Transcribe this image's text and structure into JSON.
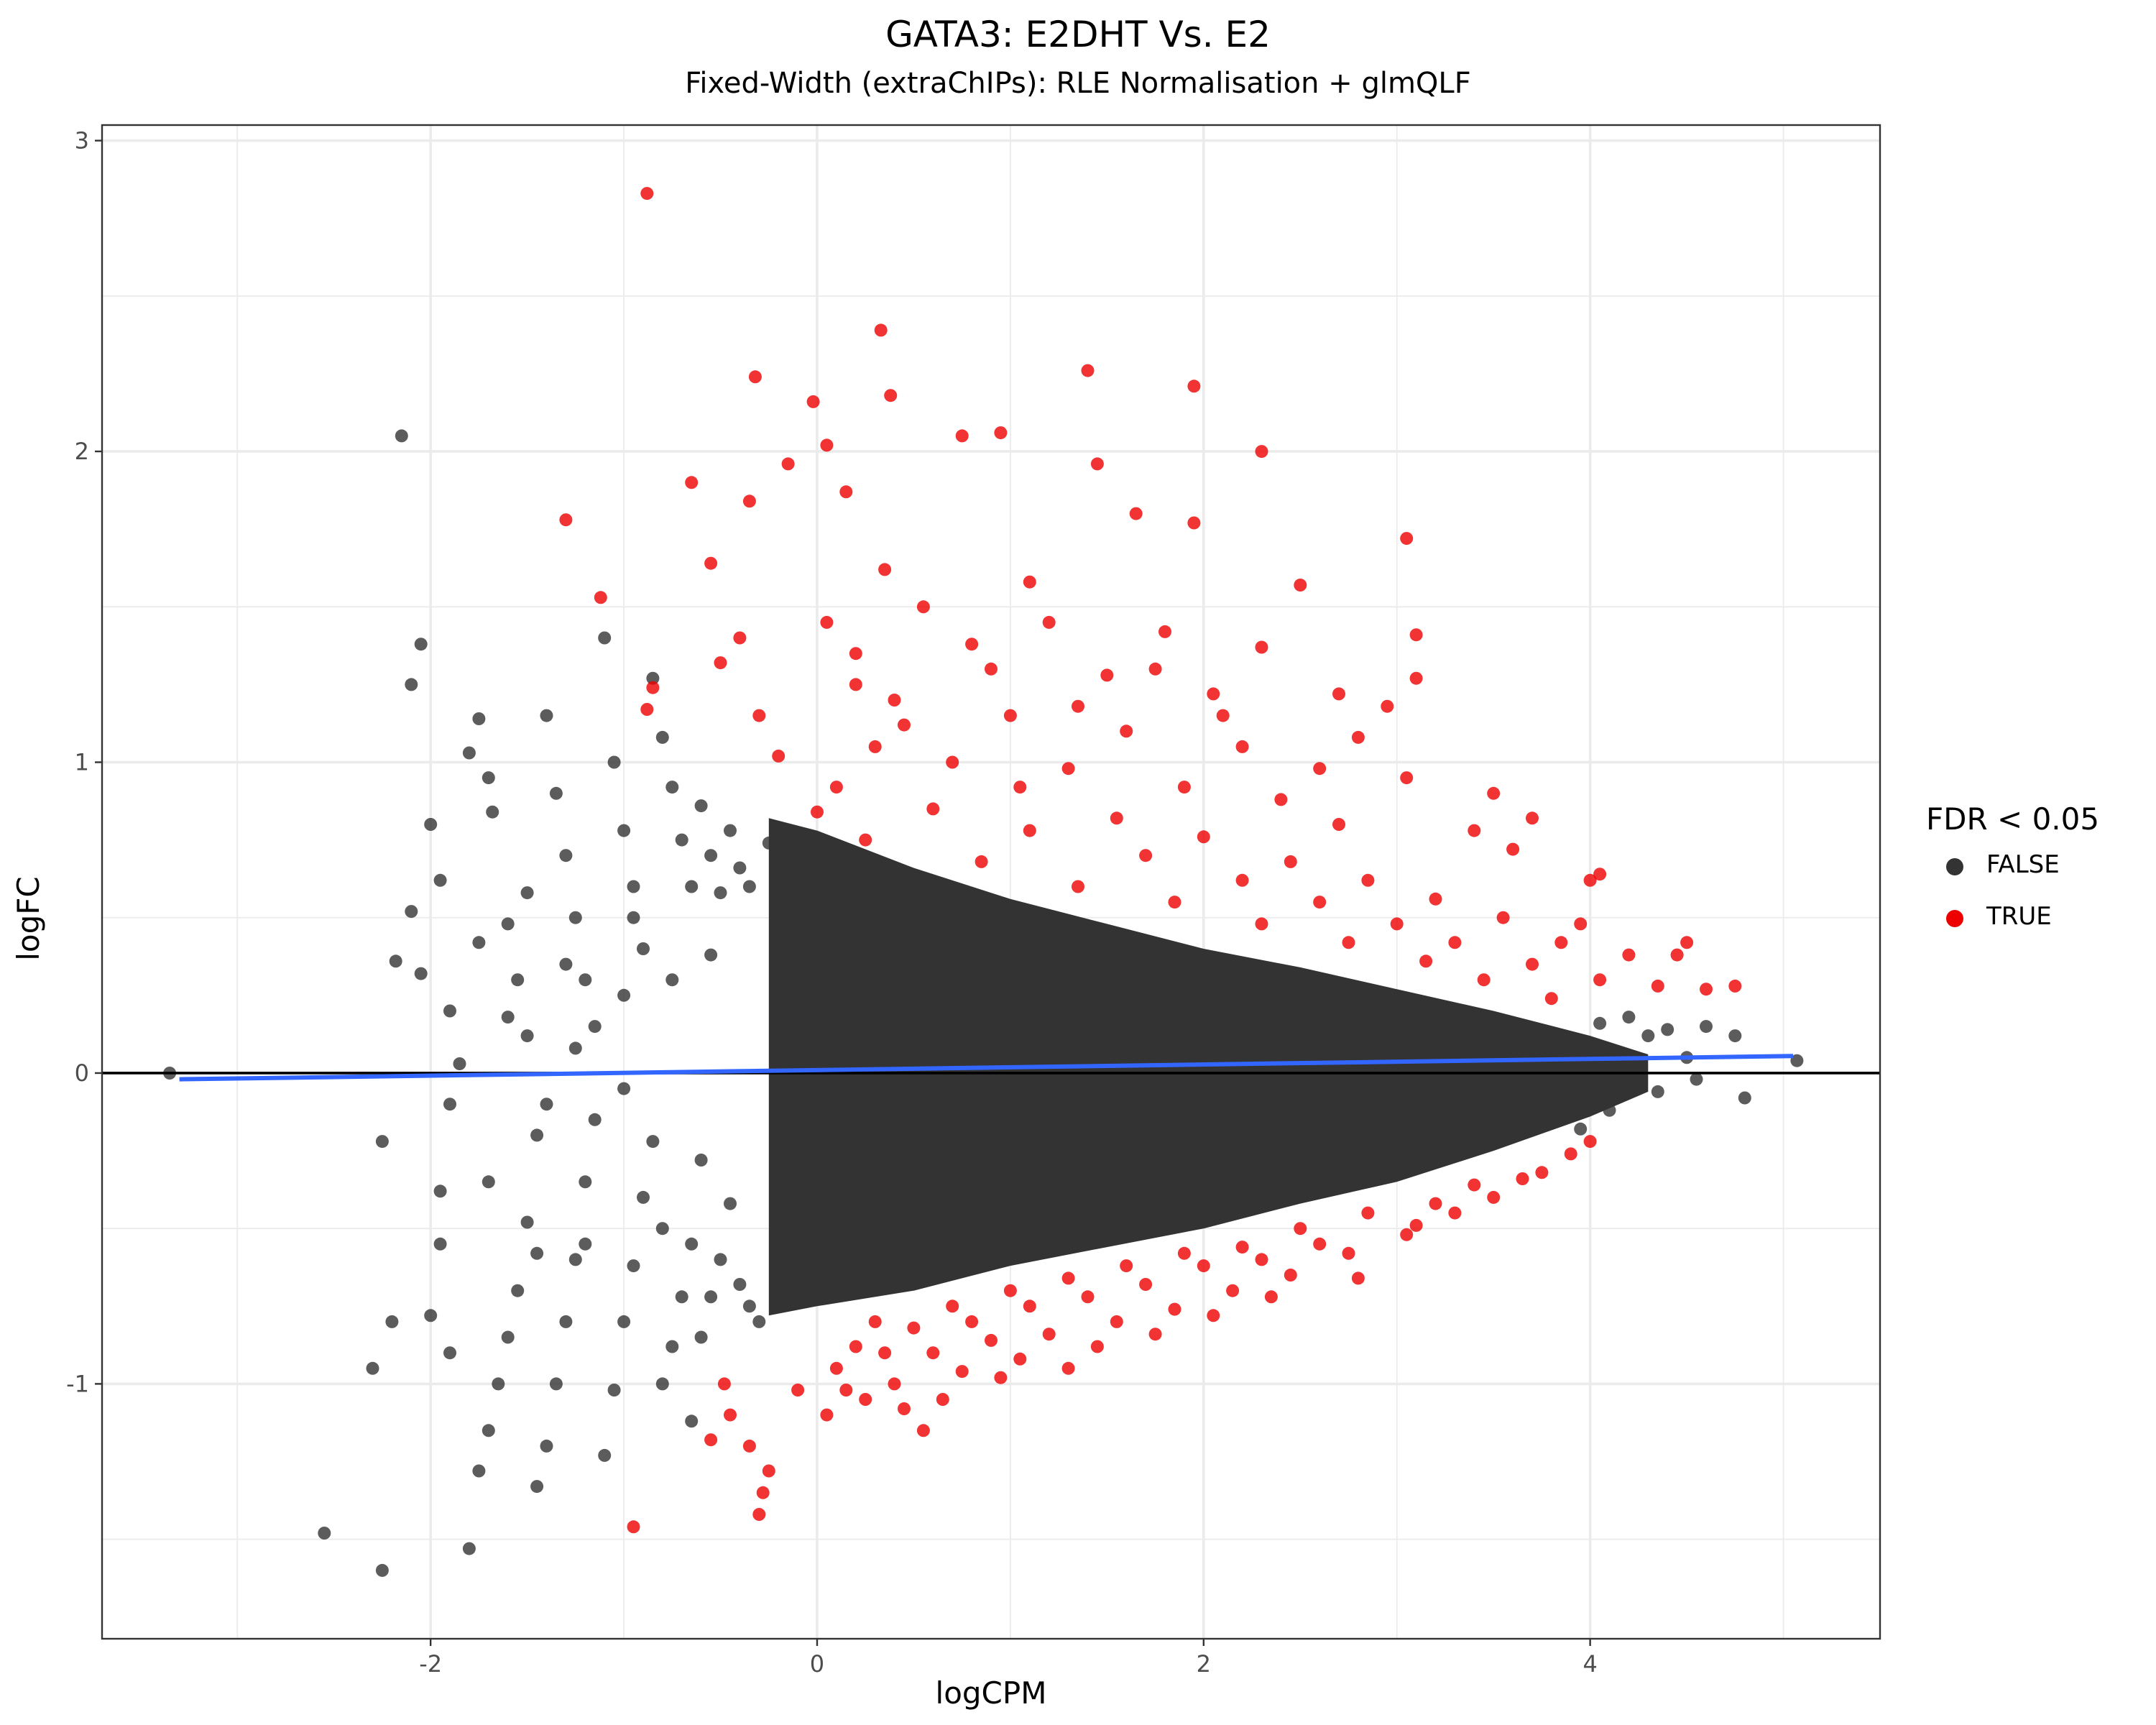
{
  "chart_data": {
    "type": "scatter",
    "title": "GATA3: E2DHT Vs. E2",
    "subtitle": "Fixed-Width (extraChIPs): RLE Normalisation + glmQLF",
    "xlabel": "logCPM",
    "ylabel": "logFC",
    "xlim": [
      -3.7,
      5.5
    ],
    "ylim": [
      -1.82,
      3.05
    ],
    "x_ticks": [
      -2,
      0,
      2,
      4
    ],
    "y_ticks": [
      -1,
      0,
      1,
      2,
      3
    ],
    "grid": true,
    "legend": {
      "title": "FDR < 0.05",
      "placement": "right",
      "entries": [
        {
          "label": "FALSE",
          "color": "#333333"
        },
        {
          "label": "TRUE",
          "color": "#ee0000"
        }
      ]
    },
    "reference_line": {
      "y": 0,
      "color": "#000000"
    },
    "trend_line": {
      "color": "#3366ff",
      "points": [
        [
          -3.3,
          -0.02
        ],
        [
          5.05,
          0.055
        ]
      ]
    },
    "dense_envelope": {
      "color": "#333333",
      "upper": [
        [
          -0.25,
          0.82
        ],
        [
          0.0,
          0.78
        ],
        [
          0.5,
          0.66
        ],
        [
          1.0,
          0.56
        ],
        [
          1.5,
          0.48
        ],
        [
          2.0,
          0.4
        ],
        [
          2.5,
          0.34
        ],
        [
          3.0,
          0.27
        ],
        [
          3.5,
          0.2
        ],
        [
          4.0,
          0.12
        ],
        [
          4.3,
          0.06
        ]
      ],
      "lower": [
        [
          4.3,
          -0.06
        ],
        [
          4.0,
          -0.14
        ],
        [
          3.5,
          -0.25
        ],
        [
          3.0,
          -0.35
        ],
        [
          2.5,
          -0.42
        ],
        [
          2.0,
          -0.5
        ],
        [
          1.5,
          -0.56
        ],
        [
          1.0,
          -0.62
        ],
        [
          0.5,
          -0.7
        ],
        [
          0.0,
          -0.75
        ],
        [
          -0.25,
          -0.78
        ]
      ]
    },
    "series": [
      {
        "name": "FALSE",
        "color": "#333333",
        "points": [
          [
            -3.35,
            0.0
          ],
          [
            -2.55,
            -1.48
          ],
          [
            -2.25,
            -1.6
          ],
          [
            -2.15,
            2.05
          ],
          [
            -2.1,
            1.25
          ],
          [
            -2.05,
            1.38
          ],
          [
            -2.2,
            -0.8
          ],
          [
            -2.3,
            -0.95
          ],
          [
            -2.25,
            -0.22
          ],
          [
            -2.1,
            0.52
          ],
          [
            -2.05,
            0.32
          ],
          [
            -2.18,
            0.36
          ],
          [
            -2.0,
            0.8
          ],
          [
            -1.95,
            0.62
          ],
          [
            -1.9,
            0.2
          ],
          [
            -1.85,
            0.03
          ],
          [
            -1.9,
            -0.1
          ],
          [
            -1.95,
            -0.55
          ],
          [
            -2.0,
            -0.78
          ],
          [
            -1.9,
            -0.9
          ],
          [
            -1.95,
            -0.38
          ],
          [
            -1.8,
            1.03
          ],
          [
            -1.75,
            1.14
          ],
          [
            -1.7,
            0.95
          ],
          [
            -1.68,
            0.84
          ],
          [
            -1.6,
            0.48
          ],
          [
            -1.55,
            0.3
          ],
          [
            -1.5,
            0.12
          ],
          [
            -1.45,
            -0.2
          ],
          [
            -1.5,
            -0.48
          ],
          [
            -1.55,
            -0.7
          ],
          [
            -1.6,
            -0.85
          ],
          [
            -1.65,
            -1.0
          ],
          [
            -1.7,
            -1.15
          ],
          [
            -1.75,
            -1.28
          ],
          [
            -1.8,
            -1.53
          ],
          [
            -1.4,
            1.15
          ],
          [
            -1.35,
            0.9
          ],
          [
            -1.3,
            0.7
          ],
          [
            -1.25,
            0.5
          ],
          [
            -1.2,
            0.3
          ],
          [
            -1.15,
            0.15
          ],
          [
            -1.15,
            -0.15
          ],
          [
            -1.2,
            -0.35
          ],
          [
            -1.25,
            -0.6
          ],
          [
            -1.3,
            -0.8
          ],
          [
            -1.35,
            -1.0
          ],
          [
            -1.4,
            -1.2
          ],
          [
            -1.45,
            -1.33
          ],
          [
            -1.1,
            1.4
          ],
          [
            -1.05,
            1.0
          ],
          [
            -1.0,
            0.78
          ],
          [
            -0.95,
            0.6
          ],
          [
            -0.9,
            0.4
          ],
          [
            -0.9,
            -0.4
          ],
          [
            -0.95,
            -0.62
          ],
          [
            -1.0,
            -0.8
          ],
          [
            -1.05,
            -1.02
          ],
          [
            -1.1,
            -1.23
          ],
          [
            -0.85,
            1.27
          ],
          [
            -0.8,
            1.08
          ],
          [
            -0.75,
            0.92
          ],
          [
            -0.7,
            0.75
          ],
          [
            -0.65,
            0.6
          ],
          [
            -0.65,
            -0.55
          ],
          [
            -0.7,
            -0.72
          ],
          [
            -0.75,
            -0.88
          ],
          [
            -0.8,
            -1.0
          ],
          [
            -0.6,
            0.86
          ],
          [
            -0.55,
            0.7
          ],
          [
            -0.5,
            0.58
          ],
          [
            -0.5,
            -0.6
          ],
          [
            -0.55,
            -0.72
          ],
          [
            -0.6,
            -0.85
          ],
          [
            -0.65,
            -1.12
          ],
          [
            -0.45,
            0.78
          ],
          [
            -0.4,
            0.66
          ],
          [
            -0.35,
            0.6
          ],
          [
            -0.4,
            -0.68
          ],
          [
            -0.35,
            -0.75
          ],
          [
            -0.3,
            -0.8
          ],
          [
            -0.25,
            0.74
          ],
          [
            -0.2,
            -0.7
          ],
          [
            -1.75,
            0.42
          ],
          [
            -1.7,
            -0.35
          ],
          [
            -1.5,
            0.58
          ],
          [
            -1.45,
            -0.58
          ],
          [
            -1.25,
            0.08
          ],
          [
            -1.0,
            -0.05
          ],
          [
            -1.0,
            0.25
          ],
          [
            -0.85,
            -0.22
          ],
          [
            -0.75,
            0.3
          ],
          [
            -0.6,
            -0.28
          ],
          [
            -0.55,
            0.38
          ],
          [
            -0.45,
            -0.42
          ],
          [
            -1.6,
            0.18
          ],
          [
            -1.4,
            -0.1
          ],
          [
            -1.3,
            0.35
          ],
          [
            -1.2,
            -0.55
          ],
          [
            -0.95,
            0.5
          ],
          [
            -0.8,
            -0.5
          ],
          [
            4.2,
            0.18
          ],
          [
            4.3,
            0.12
          ],
          [
            4.35,
            -0.06
          ],
          [
            4.4,
            0.14
          ],
          [
            4.5,
            0.05
          ],
          [
            4.55,
            -0.02
          ],
          [
            4.6,
            0.15
          ],
          [
            4.75,
            0.12
          ],
          [
            4.8,
            -0.08
          ],
          [
            5.07,
            0.04
          ],
          [
            4.1,
            -0.12
          ],
          [
            4.05,
            0.16
          ],
          [
            3.95,
            -0.18
          ],
          [
            4.15,
            -0.05
          ],
          [
            4.25,
            0.02
          ],
          [
            4.0,
            0.08
          ]
        ]
      },
      {
        "name": "TRUE",
        "color": "#ee0000",
        "points": [
          [
            -0.88,
            2.83
          ],
          [
            0.33,
            2.39
          ],
          [
            -0.32,
            2.24
          ],
          [
            0.38,
            2.18
          ],
          [
            -0.02,
            2.16
          ],
          [
            1.4,
            2.26
          ],
          [
            1.95,
            2.21
          ],
          [
            0.05,
            2.02
          ],
          [
            2.3,
            2.0
          ],
          [
            0.95,
            2.06
          ],
          [
            0.75,
            2.05
          ],
          [
            -0.15,
            1.96
          ],
          [
            1.45,
            1.96
          ],
          [
            -1.3,
            1.78
          ],
          [
            -0.65,
            1.9
          ],
          [
            -0.35,
            1.84
          ],
          [
            0.15,
            1.87
          ],
          [
            1.65,
            1.8
          ],
          [
            1.95,
            1.77
          ],
          [
            3.05,
            1.72
          ],
          [
            -1.12,
            1.53
          ],
          [
            -0.55,
            1.64
          ],
          [
            0.35,
            1.62
          ],
          [
            1.1,
            1.58
          ],
          [
            2.5,
            1.57
          ],
          [
            -0.4,
            1.4
          ],
          [
            0.05,
            1.45
          ],
          [
            0.55,
            1.5
          ],
          [
            1.2,
            1.45
          ],
          [
            1.8,
            1.42
          ],
          [
            3.1,
            1.41
          ],
          [
            2.3,
            1.37
          ],
          [
            2.7,
            1.22
          ],
          [
            3.1,
            1.27
          ],
          [
            -0.5,
            1.32
          ],
          [
            -0.85,
            1.24
          ],
          [
            -0.88,
            1.17
          ],
          [
            0.2,
            1.35
          ],
          [
            0.9,
            1.3
          ],
          [
            1.5,
            1.28
          ],
          [
            2.05,
            1.22
          ],
          [
            2.95,
            1.18
          ],
          [
            -0.3,
            1.15
          ],
          [
            0.4,
            1.2
          ],
          [
            1.0,
            1.15
          ],
          [
            1.6,
            1.1
          ],
          [
            2.2,
            1.05
          ],
          [
            2.8,
            1.08
          ],
          [
            3.05,
            0.95
          ],
          [
            -0.2,
            1.02
          ],
          [
            0.3,
            1.05
          ],
          [
            0.7,
            1.0
          ],
          [
            1.3,
            0.98
          ],
          [
            1.9,
            0.92
          ],
          [
            2.4,
            0.88
          ],
          [
            2.7,
            0.8
          ],
          [
            3.5,
            0.9
          ],
          [
            3.7,
            0.82
          ],
          [
            3.4,
            0.78
          ],
          [
            4.0,
            0.62
          ],
          [
            4.05,
            0.64
          ],
          [
            3.6,
            0.72
          ],
          [
            3.95,
            0.48
          ],
          [
            4.2,
            0.38
          ],
          [
            4.45,
            0.38
          ],
          [
            4.5,
            0.42
          ],
          [
            4.75,
            0.28
          ],
          [
            4.35,
            0.28
          ],
          [
            4.6,
            0.27
          ],
          [
            0.1,
            0.92
          ],
          [
            0.6,
            0.85
          ],
          [
            1.1,
            0.78
          ],
          [
            1.7,
            0.7
          ],
          [
            2.2,
            0.62
          ],
          [
            2.6,
            0.55
          ],
          [
            3.0,
            0.48
          ],
          [
            3.3,
            0.42
          ],
          [
            3.7,
            0.35
          ],
          [
            4.05,
            0.3
          ],
          [
            0.2,
            1.25
          ],
          [
            0.8,
            1.38
          ],
          [
            1.35,
            1.18
          ],
          [
            1.75,
            1.3
          ],
          [
            2.1,
            1.15
          ],
          [
            2.6,
            0.98
          ],
          [
            0.45,
            1.12
          ],
          [
            1.05,
            0.92
          ],
          [
            1.55,
            0.82
          ],
          [
            2.0,
            0.76
          ],
          [
            2.45,
            0.68
          ],
          [
            2.85,
            0.62
          ],
          [
            3.2,
            0.56
          ],
          [
            3.55,
            0.5
          ],
          [
            3.85,
            0.42
          ],
          [
            0.0,
            0.84
          ],
          [
            0.25,
            0.75
          ],
          [
            0.85,
            0.68
          ],
          [
            1.35,
            0.6
          ],
          [
            1.85,
            0.55
          ],
          [
            2.3,
            0.48
          ],
          [
            2.75,
            0.42
          ],
          [
            3.15,
            0.36
          ],
          [
            3.45,
            0.3
          ],
          [
            3.8,
            0.24
          ],
          [
            -0.95,
            -1.46
          ],
          [
            -0.3,
            -1.42
          ],
          [
            -0.28,
            -1.35
          ],
          [
            -0.25,
            -1.28
          ],
          [
            -0.35,
            -1.2
          ],
          [
            -0.45,
            -1.1
          ],
          [
            -0.55,
            -1.18
          ],
          [
            -0.48,
            -1.0
          ],
          [
            -0.1,
            -1.02
          ],
          [
            0.05,
            -1.1
          ],
          [
            0.25,
            -1.05
          ],
          [
            0.4,
            -1.0
          ],
          [
            0.55,
            -1.15
          ],
          [
            0.65,
            -1.05
          ],
          [
            0.95,
            -0.98
          ],
          [
            1.3,
            -0.95
          ],
          [
            0.2,
            -0.88
          ],
          [
            0.5,
            -0.82
          ],
          [
            0.8,
            -0.8
          ],
          [
            1.1,
            -0.75
          ],
          [
            1.4,
            -0.72
          ],
          [
            1.7,
            -0.68
          ],
          [
            2.0,
            -0.62
          ],
          [
            2.3,
            -0.6
          ],
          [
            2.6,
            -0.55
          ],
          [
            2.8,
            -0.66
          ],
          [
            3.05,
            -0.52
          ],
          [
            3.3,
            -0.45
          ],
          [
            3.5,
            -0.4
          ],
          [
            3.75,
            -0.32
          ],
          [
            4.0,
            -0.22
          ],
          [
            0.1,
            -0.95
          ],
          [
            0.35,
            -0.9
          ],
          [
            0.6,
            -0.9
          ],
          [
            0.9,
            -0.86
          ],
          [
            1.2,
            -0.84
          ],
          [
            1.55,
            -0.8
          ],
          [
            1.85,
            -0.76
          ],
          [
            2.15,
            -0.7
          ],
          [
            2.45,
            -0.65
          ],
          [
            2.75,
            -0.58
          ],
          [
            3.1,
            -0.49
          ],
          [
            3.4,
            -0.36
          ],
          [
            3.65,
            -0.34
          ],
          [
            3.9,
            -0.26
          ],
          [
            0.3,
            -0.8
          ],
          [
            0.7,
            -0.75
          ],
          [
            1.0,
            -0.7
          ],
          [
            1.3,
            -0.66
          ],
          [
            1.6,
            -0.62
          ],
          [
            1.9,
            -0.58
          ],
          [
            2.2,
            -0.56
          ],
          [
            2.5,
            -0.5
          ],
          [
            2.85,
            -0.45
          ],
          [
            3.2,
            -0.42
          ],
          [
            0.15,
            -1.02
          ],
          [
            0.45,
            -1.08
          ],
          [
            0.75,
            -0.96
          ],
          [
            1.05,
            -0.92
          ],
          [
            1.45,
            -0.88
          ],
          [
            1.75,
            -0.84
          ],
          [
            2.05,
            -0.78
          ],
          [
            2.35,
            -0.72
          ]
        ]
      }
    ]
  }
}
